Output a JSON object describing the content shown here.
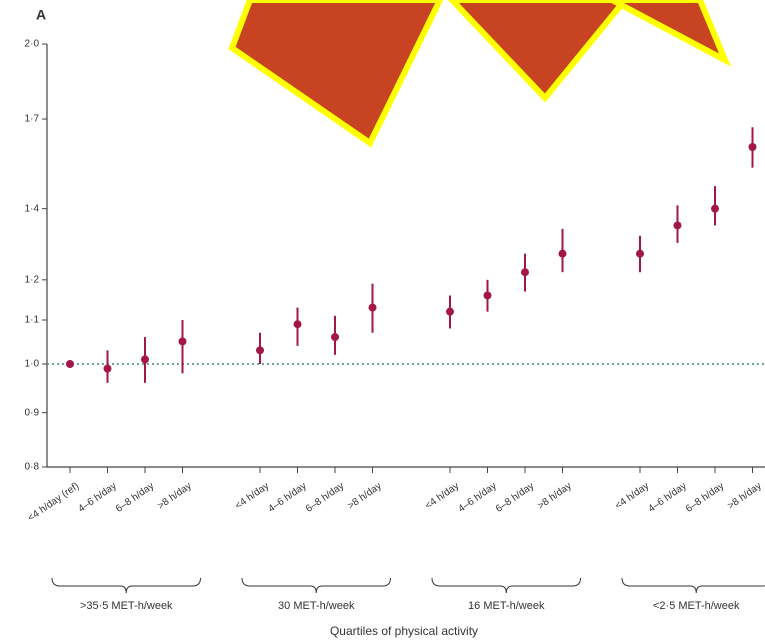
{
  "chart_data": {
    "type": "errorbar",
    "panel": "A",
    "xlabel": "Quartiles of physical activity",
    "categories": [
      "<4 h/day (ref)",
      "4–6 h/day",
      "6–8 h/day",
      ">8 h/day",
      "<4 h/day",
      "4–6 h/day",
      "6–8 h/day",
      ">8 h/day",
      "<4 h/day",
      "4–6 h/day",
      "6–8 h/day",
      ">8 h/day",
      "<4 h/day",
      "4–6 h/day",
      "6–8 h/day",
      ">8 h/day"
    ],
    "groups": [
      ">35·5 MET-h/week",
      "30 MET-h/week",
      "16 MET-h/week",
      "<2·5 MET-h/week"
    ],
    "series": [
      {
        "color": "#a3164a",
        "values": [
          1.0,
          0.99,
          1.01,
          1.05,
          1.03,
          1.09,
          1.06,
          1.13,
          1.12,
          1.16,
          1.22,
          1.27,
          1.27,
          1.35,
          1.4,
          1.6
        ],
        "lower": [
          null,
          0.96,
          0.96,
          0.98,
          1.0,
          1.04,
          1.02,
          1.07,
          1.08,
          1.12,
          1.17,
          1.22,
          1.22,
          1.3,
          1.35,
          1.53
        ],
        "upper": [
          null,
          1.03,
          1.06,
          1.1,
          1.07,
          1.13,
          1.11,
          1.19,
          1.16,
          1.2,
          1.27,
          1.34,
          1.32,
          1.41,
          1.47,
          1.67
        ]
      }
    ],
    "log_y": true,
    "ylim": [
      0.8,
      2.0
    ],
    "yticks": [
      {
        "value": 0.8,
        "label": "0·8"
      },
      {
        "value": 0.9,
        "label": "0·9"
      },
      {
        "value": 1.0,
        "label": "1·0"
      },
      {
        "value": 1.1,
        "label": "1·1"
      },
      {
        "value": 1.2,
        "label": "1·2"
      },
      {
        "value": 1.4,
        "label": "1·4"
      },
      {
        "value": 1.7,
        "label": "1·7"
      },
      {
        "value": 2.0,
        "label": "2·0"
      }
    ],
    "reference_line": 1
  }
}
